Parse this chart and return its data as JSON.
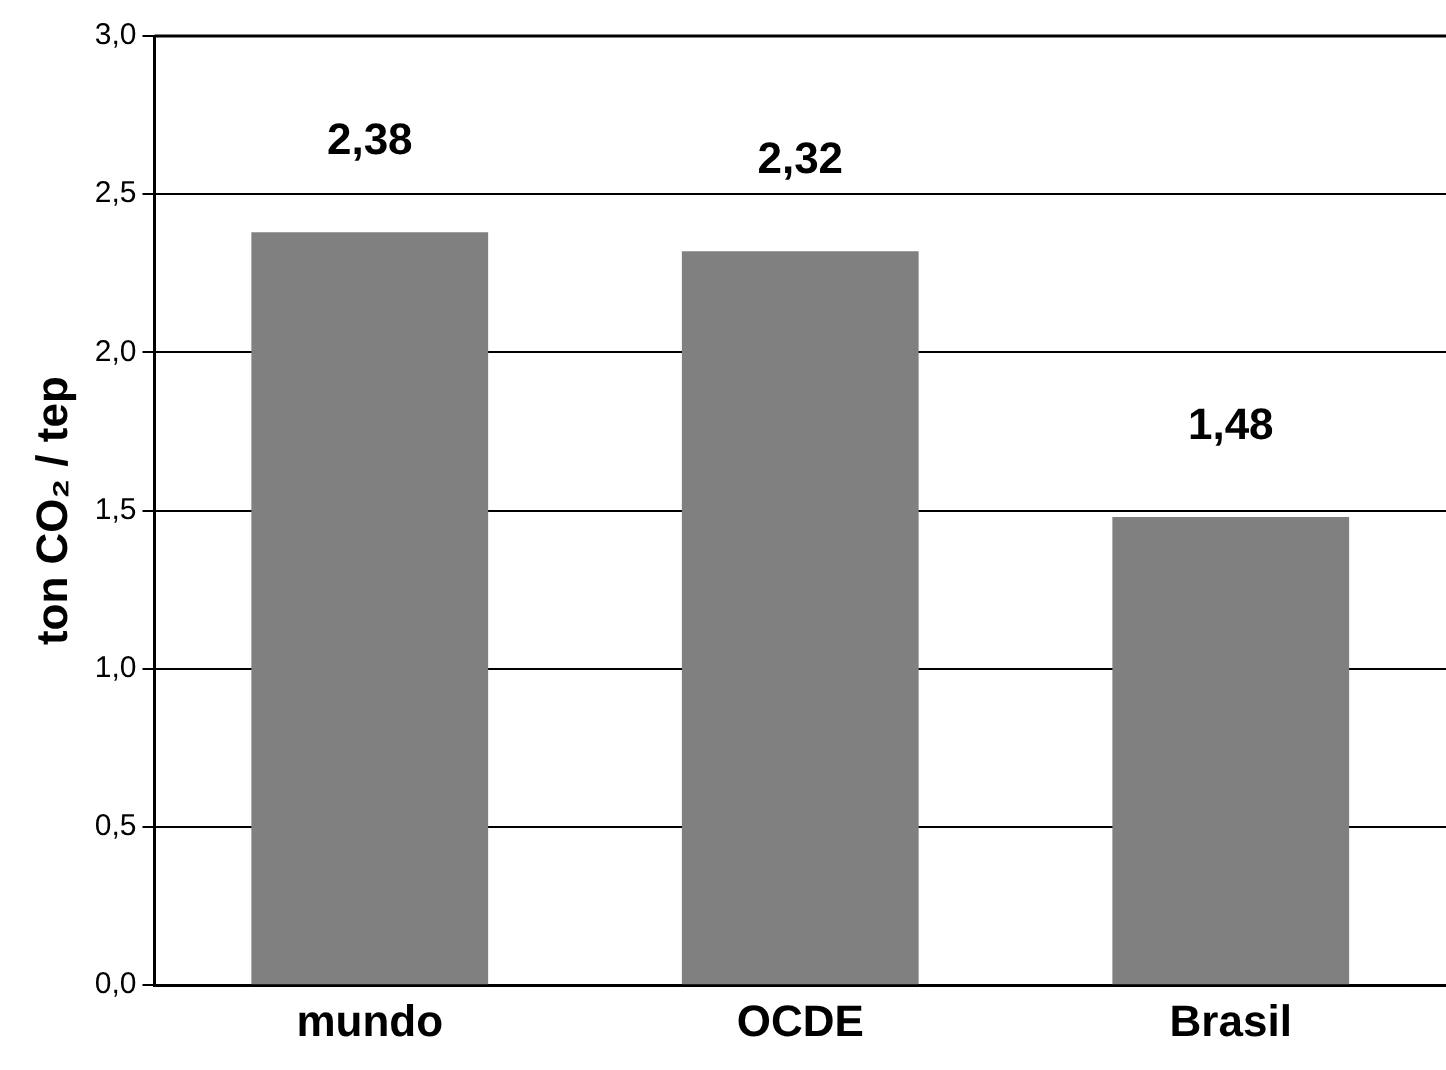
{
  "chart_data": {
    "type": "bar",
    "ylabel": "ton CO₂ / tep",
    "categories": [
      "mundo",
      "OCDE",
      "Brasil"
    ],
    "values": [
      2.38,
      2.32,
      1.48
    ],
    "color": "#808080",
    "value_labels": [
      "2,38",
      "2,32",
      "1,48"
    ],
    "ylim": [
      0,
      3
    ],
    "yticks": [
      {
        "value": 0,
        "label": "0,0"
      },
      {
        "value": 0.5,
        "label": "0,5"
      },
      {
        "value": 1,
        "label": "1,0"
      },
      {
        "value": 1.5,
        "label": "1,5"
      },
      {
        "value": 2,
        "label": "2,0"
      },
      {
        "value": 2.5,
        "label": "2,5"
      },
      {
        "value": 3,
        "label": "3,0"
      }
    ],
    "grid": "y",
    "legend": false
  }
}
